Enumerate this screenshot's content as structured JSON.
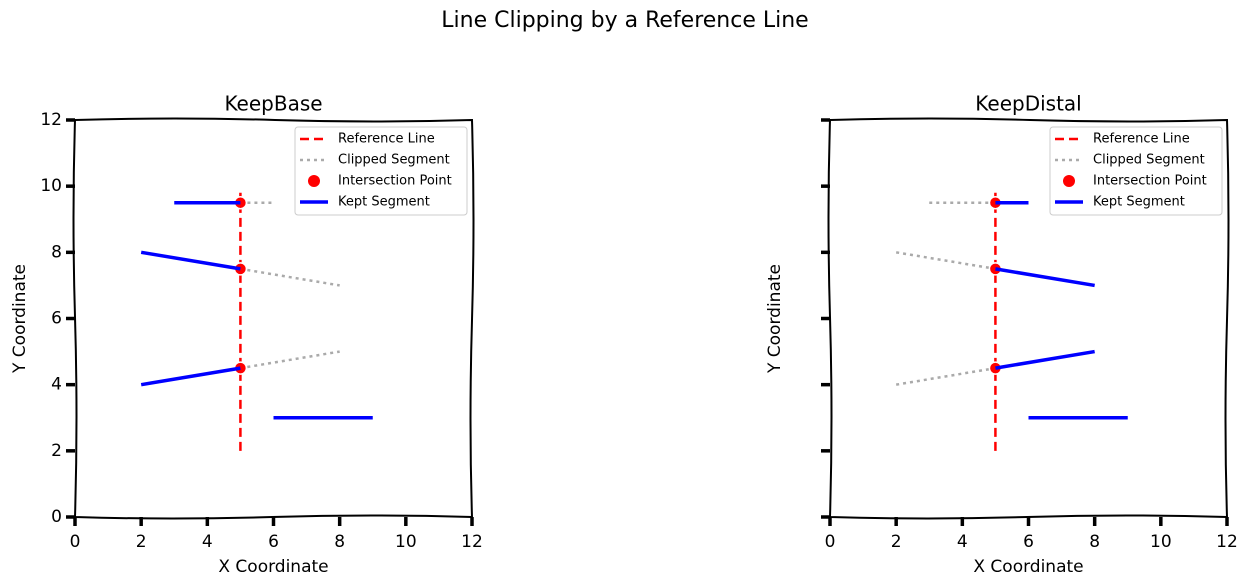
{
  "title": "Line Clipping by a Reference Line",
  "chart_data": [
    {
      "type": "line",
      "title": "KeepBase",
      "xlabel": "X Coordinate",
      "ylabel": "Y Coordinate",
      "xlim": [
        0,
        12
      ],
      "ylim": [
        0,
        12
      ],
      "xticks": [
        0,
        2,
        4,
        6,
        8,
        10,
        12
      ],
      "yticks": [
        0,
        2,
        4,
        6,
        8,
        10,
        12
      ],
      "ytick_labels": true,
      "legend": "upper right",
      "series": [
        {
          "name": "Reference Line",
          "color": "#ff0000",
          "kind": "line",
          "linestyle": "dashed",
          "x": [
            5,
            5
          ],
          "values": [
            2,
            9.8
          ]
        },
        {
          "name": "Clipped Segment",
          "color": "#aaaaaa",
          "kind": "line",
          "linestyle": "dotted",
          "x": [
            5,
            6,
            null,
            5,
            8,
            null,
            5,
            8
          ],
          "values": [
            9.5,
            9.5,
            null,
            7.5,
            7,
            null,
            4.5,
            5
          ]
        },
        {
          "name": "Intersection Point",
          "color": "#ff0000",
          "kind": "scatter",
          "x": [
            5,
            5,
            5
          ],
          "values": [
            9.5,
            7.5,
            4.5
          ]
        },
        {
          "name": "Kept Segment",
          "color": "#0000ff",
          "kind": "line",
          "linestyle": "solid",
          "x": [
            3,
            5,
            null,
            2,
            5,
            null,
            2,
            5,
            null,
            6,
            9
          ],
          "values": [
            9.5,
            9.5,
            null,
            8,
            7.5,
            null,
            4,
            4.5,
            null,
            3,
            3
          ]
        }
      ]
    },
    {
      "type": "line",
      "title": "KeepDistal",
      "xlabel": "X Coordinate",
      "ylabel": "Y Coordinate",
      "xlim": [
        0,
        12
      ],
      "ylim": [
        0,
        12
      ],
      "xticks": [
        0,
        2,
        4,
        6,
        8,
        10,
        12
      ],
      "yticks": [
        0,
        2,
        4,
        6,
        8,
        10,
        12
      ],
      "ytick_labels": false,
      "legend": "upper right",
      "series": [
        {
          "name": "Reference Line",
          "color": "#ff0000",
          "kind": "line",
          "linestyle": "dashed",
          "x": [
            5,
            5
          ],
          "values": [
            2,
            9.8
          ]
        },
        {
          "name": "Clipped Segment",
          "color": "#aaaaaa",
          "kind": "line",
          "linestyle": "dotted",
          "x": [
            3,
            5,
            null,
            2,
            5,
            null,
            2,
            5
          ],
          "values": [
            9.5,
            9.5,
            null,
            8,
            7.5,
            null,
            4,
            4.5
          ]
        },
        {
          "name": "Intersection Point",
          "color": "#ff0000",
          "kind": "scatter",
          "x": [
            5,
            5,
            5
          ],
          "values": [
            9.5,
            7.5,
            4.5
          ]
        },
        {
          "name": "Kept Segment",
          "color": "#0000ff",
          "kind": "line",
          "linestyle": "solid",
          "x": [
            5,
            6,
            null,
            5,
            8,
            null,
            5,
            8,
            null,
            6,
            9
          ],
          "values": [
            9.5,
            9.5,
            null,
            7.5,
            7,
            null,
            4.5,
            5,
            null,
            3,
            3
          ]
        }
      ]
    }
  ]
}
